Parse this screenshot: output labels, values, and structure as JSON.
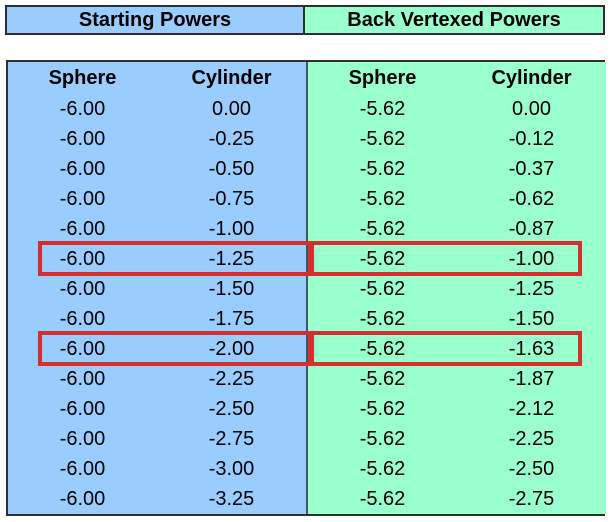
{
  "colors": {
    "starting_bg": "#99CCFF",
    "vertexed_bg": "#99FFCC",
    "highlight_red": "#D32F2F",
    "border_dark": "#2E2E2E",
    "text": "#000000"
  },
  "header": {
    "starting_label": "Starting Powers",
    "vertexed_label": "Back Vertexed Powers"
  },
  "table": {
    "columns": [
      "Sphere",
      "Cylinder",
      "Sphere",
      "Cylinder"
    ],
    "rows": [
      [
        "-6.00",
        "0.00",
        "-5.62",
        "0.00"
      ],
      [
        "-6.00",
        "-0.25",
        "-5.62",
        "-0.12"
      ],
      [
        "-6.00",
        "-0.50",
        "-5.62",
        "-0.37"
      ],
      [
        "-6.00",
        "-0.75",
        "-5.62",
        "-0.62"
      ],
      [
        "-6.00",
        "-1.00",
        "-5.62",
        "-0.87"
      ],
      [
        "-6.00",
        "-1.25",
        "-5.62",
        "-1.00"
      ],
      [
        "-6.00",
        "-1.50",
        "-5.62",
        "-1.25"
      ],
      [
        "-6.00",
        "-1.75",
        "-5.62",
        "-1.50"
      ],
      [
        "-6.00",
        "-2.00",
        "-5.62",
        "-1.63"
      ],
      [
        "-6.00",
        "-2.25",
        "-5.62",
        "-1.87"
      ],
      [
        "-6.00",
        "-2.50",
        "-5.62",
        "-2.12"
      ],
      [
        "-6.00",
        "-2.75",
        "-5.62",
        "-2.25"
      ],
      [
        "-6.00",
        "-3.00",
        "-5.62",
        "-2.50"
      ],
      [
        "-6.00",
        "-3.25",
        "-5.62",
        "-2.75"
      ]
    ],
    "highlighted_rows": [
      5,
      8
    ]
  }
}
